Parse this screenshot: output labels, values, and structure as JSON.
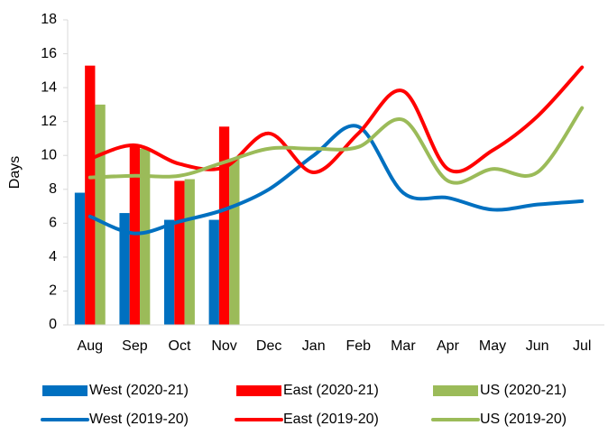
{
  "chart_data": {
    "type": "bar",
    "y_label": "Days",
    "categories": [
      "Aug",
      "Sep",
      "Oct",
      "Nov",
      "Dec",
      "Jan",
      "Feb",
      "Mar",
      "Apr",
      "May",
      "Jun",
      "Jul"
    ],
    "ylim": [
      0,
      18
    ],
    "yticks": [
      0,
      2,
      4,
      6,
      8,
      10,
      12,
      14,
      16,
      18
    ],
    "grid": false,
    "legend": "bottom",
    "series": [
      {
        "name": "West (2020-21)",
        "type": "bar",
        "color": "#0070c0",
        "values": [
          7.8,
          6.6,
          6.2,
          6.2,
          null,
          null,
          null,
          null,
          null,
          null,
          null,
          null
        ]
      },
      {
        "name": "East (2020-21)",
        "type": "bar",
        "color": "#ff0000",
        "values": [
          15.3,
          10.6,
          8.5,
          11.7,
          null,
          null,
          null,
          null,
          null,
          null,
          null,
          null
        ]
      },
      {
        "name": "US (2020-21)",
        "type": "bar",
        "color": "#9bbb59",
        "values": [
          13.0,
          10.4,
          8.6,
          9.8,
          null,
          null,
          null,
          null,
          null,
          null,
          null,
          null
        ]
      },
      {
        "name": "West (2019-20)",
        "type": "line",
        "color": "#0070c0",
        "values": [
          6.4,
          5.4,
          6.1,
          6.8,
          8.0,
          10.0,
          11.7,
          7.8,
          7.5,
          6.8,
          7.1,
          7.3
        ]
      },
      {
        "name": "East (2019-20)",
        "type": "line",
        "color": "#ff0000",
        "values": [
          9.8,
          10.6,
          9.5,
          9.3,
          11.3,
          9.0,
          11.3,
          13.8,
          9.2,
          10.3,
          12.3,
          15.2
        ]
      },
      {
        "name": "US (2019-20)",
        "type": "line",
        "color": "#9bbb59",
        "values": [
          8.7,
          8.8,
          8.8,
          9.6,
          10.4,
          10.4,
          10.5,
          12.1,
          8.5,
          9.2,
          9.0,
          12.8
        ]
      }
    ]
  }
}
